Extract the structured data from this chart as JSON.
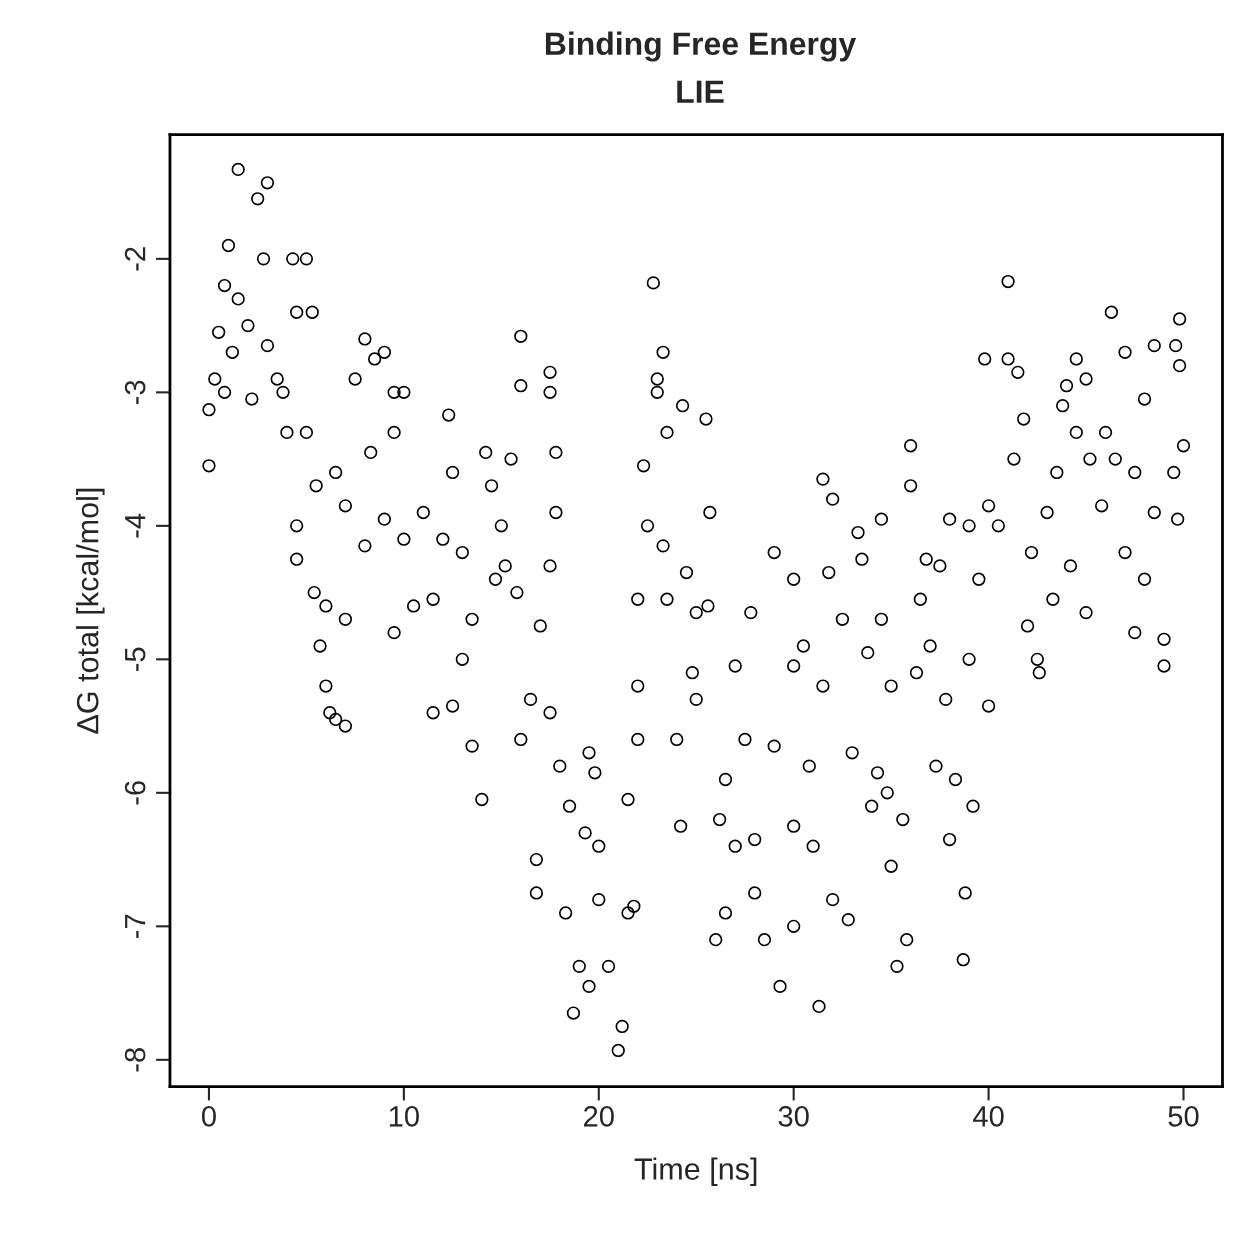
{
  "chart_data": {
    "type": "scatter",
    "title": "Binding Free Energy",
    "subtitle": "LIE",
    "xlabel": "Time [ns]",
    "ylabel": "ΔG total [kcal/mol]",
    "xlim": [
      -2,
      52
    ],
    "ylim": [
      -8.2,
      -1.07
    ],
    "xticks": [
      0,
      10,
      20,
      30,
      40,
      50
    ],
    "yticks": [
      -8,
      -7,
      -6,
      -5,
      -4,
      -3,
      -2
    ],
    "grid": false,
    "marker": "circle",
    "series": [
      {
        "color": "#000000",
        "x": [
          0,
          0,
          0.3,
          0.5,
          0.8,
          1.0,
          1.5,
          1.5,
          2,
          2.5,
          3,
          2.8,
          3,
          3.5,
          4,
          4.3,
          4.5,
          5,
          5,
          5.5,
          1.2,
          0.8,
          2.2,
          3.8,
          4.5,
          4.5,
          5.3,
          5.4,
          5.7,
          6,
          6.2,
          6.5,
          7,
          6.5,
          7,
          7.5,
          8,
          8.5,
          9,
          8.3,
          9,
          9.5,
          10,
          9.5,
          10,
          10.5,
          6,
          7,
          8,
          9.5,
          11,
          11.5,
          11.5,
          12.3,
          12.5,
          13,
          13,
          13.5,
          14,
          14.2,
          14.5,
          14.7,
          12,
          13.5,
          12.5,
          15,
          15.5,
          15.2,
          16,
          16,
          15.8,
          16,
          16.5,
          16.8,
          16.8,
          17.5,
          17.5,
          17.8,
          17.8,
          17.5,
          17,
          17.5,
          18,
          18.3,
          18.5,
          18.7,
          19,
          19.3,
          19.5,
          19.8,
          20,
          19.5,
          20,
          20.5,
          21,
          21.2,
          21.5,
          21.5,
          21.8,
          22,
          22,
          22,
          22.3,
          22.5,
          22.8,
          23,
          23,
          23.3,
          23.3,
          23.5,
          23.5,
          24,
          24.2,
          24.3,
          24.5,
          24.8,
          25,
          25,
          25.5,
          25.7,
          25.6,
          26,
          26.2,
          26.5,
          26.5,
          27,
          27,
          27.5,
          27.8,
          28,
          28,
          28.5,
          29,
          29,
          29.3,
          30,
          30,
          30,
          30,
          30.5,
          30.8,
          31,
          31.3,
          31.5,
          31.5,
          31.8,
          32,
          32,
          32.5,
          32.8,
          33,
          33.3,
          33.5,
          33.8,
          34,
          34.3,
          34.5,
          34.5,
          34.8,
          35,
          35.3,
          35.6,
          35.8,
          35,
          36,
          36,
          36.3,
          36.5,
          36.8,
          37,
          37.3,
          37.5,
          37.8,
          38,
          38,
          38.3,
          38.7,
          38.8,
          39,
          39,
          39.2,
          39.5,
          39.8,
          40,
          40,
          40.5,
          41,
          41,
          41.3,
          41.5,
          41.8,
          42,
          42.2,
          42.5,
          42.6,
          43,
          43.3,
          43.5,
          43.8,
          44,
          44.2,
          44.5,
          44.5,
          45,
          45,
          45.2,
          45.8,
          46,
          46.3,
          46.5,
          47,
          47,
          47.5,
          47.5,
          48,
          48,
          48.5,
          48.5,
          49,
          49,
          49.5,
          49.6,
          49.8,
          50,
          49.8,
          49.7
        ],
        "values": [
          -3.13,
          -3.55,
          -2.9,
          -2.55,
          -2.2,
          -1.9,
          -1.33,
          -2.3,
          -2.5,
          -1.55,
          -1.43,
          -2.0,
          -2.65,
          -2.9,
          -3.3,
          -2.0,
          -2.4,
          -2.0,
          -3.3,
          -3.7,
          -2.7,
          -3.0,
          -3.05,
          -3.0,
          -4.0,
          -4.25,
          -2.4,
          -4.5,
          -4.9,
          -5.2,
          -5.4,
          -5.45,
          -5.5,
          -3.6,
          -3.85,
          -2.9,
          -2.6,
          -2.75,
          -2.7,
          -3.45,
          -3.95,
          -3.0,
          -3.0,
          -4.8,
          -4.1,
          -4.6,
          -4.6,
          -4.7,
          -4.15,
          -3.3,
          -3.9,
          -4.55,
          -5.4,
          -3.17,
          -3.6,
          -4.2,
          -5.0,
          -5.65,
          -6.05,
          -3.45,
          -3.7,
          -4.4,
          -4.1,
          -4.7,
          -5.35,
          -4.0,
          -3.5,
          -4.3,
          -2.58,
          -2.95,
          -4.5,
          -5.6,
          -5.3,
          -6.5,
          -6.75,
          -2.85,
          -3.0,
          -3.45,
          -3.9,
          -4.3,
          -4.75,
          -5.4,
          -5.8,
          -6.9,
          -6.1,
          -7.65,
          -7.3,
          -6.3,
          -5.7,
          -5.85,
          -6.8,
          -7.45,
          -6.4,
          -7.3,
          -7.93,
          -7.75,
          -6.05,
          -6.9,
          -6.85,
          -4.55,
          -5.6,
          -5.2,
          -3.55,
          -4.0,
          -2.18,
          -3.0,
          -2.9,
          -2.7,
          -4.15,
          -3.3,
          -4.55,
          -5.6,
          -6.25,
          -3.1,
          -4.35,
          -5.1,
          -4.65,
          -5.3,
          -3.2,
          -3.9,
          -4.6,
          -7.1,
          -6.2,
          -5.9,
          -6.9,
          -5.05,
          -6.4,
          -5.6,
          -4.65,
          -6.35,
          -6.75,
          -7.1,
          -4.2,
          -5.65,
          -7.45,
          -4.4,
          -5.05,
          -6.25,
          -7.0,
          -4.9,
          -5.8,
          -6.4,
          -7.6,
          -3.65,
          -5.2,
          -4.35,
          -3.8,
          -6.8,
          -4.7,
          -6.95,
          -5.7,
          -4.05,
          -4.25,
          -4.95,
          -6.1,
          -5.85,
          -3.95,
          -4.7,
          -6.0,
          -6.55,
          -7.3,
          -6.2,
          -7.1,
          -5.2,
          -3.4,
          -3.7,
          -5.1,
          -4.55,
          -4.25,
          -4.9,
          -5.8,
          -4.3,
          -5.3,
          -3.95,
          -6.35,
          -5.9,
          -7.25,
          -6.75,
          -4.0,
          -5.0,
          -6.1,
          -4.4,
          -2.75,
          -5.35,
          -3.85,
          -4.0,
          -2.17,
          -2.75,
          -3.5,
          -2.85,
          -3.2,
          -4.75,
          -4.2,
          -5.0,
          -5.1,
          -3.9,
          -4.55,
          -3.6,
          -3.1,
          -2.95,
          -4.3,
          -2.75,
          -3.3,
          -2.9,
          -4.65,
          -3.5,
          -3.85,
          -3.3,
          -2.4,
          -3.5,
          -2.7,
          -4.2,
          -4.8,
          -3.6,
          -3.05,
          -4.4,
          -2.65,
          -3.9,
          -5.05,
          -4.85,
          -3.6,
          -2.65,
          -2.45,
          -3.4,
          -2.8,
          -3.95
        ]
      }
    ]
  }
}
